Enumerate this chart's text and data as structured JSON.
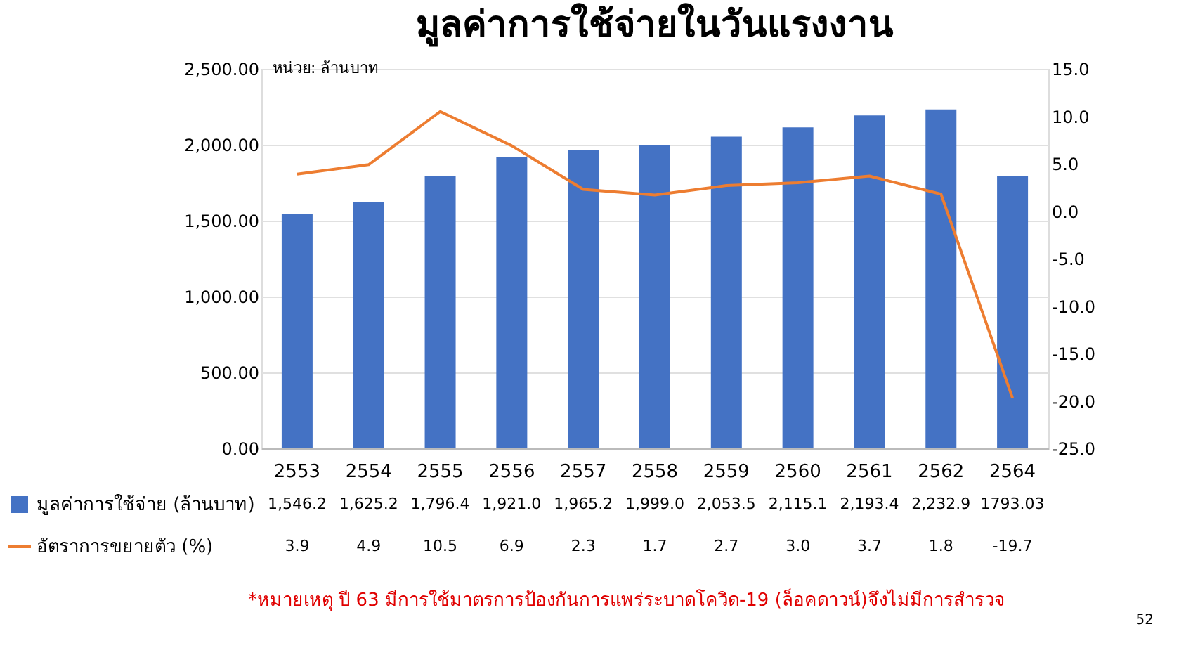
{
  "chart_data": {
    "type": "bar",
    "title": "มูลค่าการใช้จ่ายในวันแรงงาน",
    "categories": [
      "2553",
      "2554",
      "2555",
      "2556",
      "2557",
      "2558",
      "2559",
      "2560",
      "2561",
      "2562",
      "2564"
    ],
    "series": [
      {
        "name": "มูลค่าการใช้จ่าย (ล้านบาท)",
        "color": "#4472c4",
        "values": [
          1546.2,
          1625.2,
          1796.4,
          1921.0,
          1965.2,
          1999.0,
          2053.5,
          2115.1,
          2193.4,
          2232.9,
          1793.03
        ],
        "value_labels": [
          "1,546.2",
          "1,625.2",
          "1,796.4",
          "1,921.0",
          "1,965.2",
          "1,999.0",
          "2,053.5",
          "2,115.1",
          "2,193.4",
          "2,232.9",
          "1793.03"
        ]
      },
      {
        "name": "อัตราการขยายตัว (%)",
        "type": "line",
        "axis": "y2",
        "color": "#ed7d31",
        "values": [
          3.9,
          4.9,
          10.5,
          6.9,
          2.3,
          1.7,
          2.7,
          3.0,
          3.7,
          1.8,
          -19.7
        ],
        "value_labels": [
          "3.9",
          "4.9",
          "10.5",
          "6.9",
          "2.3",
          "1.7",
          "2.7",
          "3.0",
          "3.7",
          "1.8",
          "-19.7"
        ]
      }
    ],
    "ylim": [
      0,
      2500
    ],
    "yticks": [
      {
        "value": 0,
        "label": "0.00"
      },
      {
        "value": 500,
        "label": "500.00"
      },
      {
        "value": 1000,
        "label": "1,000.00"
      },
      {
        "value": 1500,
        "label": "1,500.00"
      },
      {
        "value": 2000,
        "label": "2,000.00"
      },
      {
        "value": 2500,
        "label": "2,500.00"
      }
    ],
    "y2lim": [
      -25,
      15
    ],
    "y2ticks": [
      {
        "value": -25,
        "label": "-25.0"
      },
      {
        "value": -20,
        "label": "-20.0"
      },
      {
        "value": -15,
        "label": "-15.0"
      },
      {
        "value": -10,
        "label": "-10.0"
      },
      {
        "value": -5,
        "label": "-5.0"
      },
      {
        "value": 0,
        "label": "0.0"
      },
      {
        "value": 5,
        "label": "5.0"
      },
      {
        "value": 10,
        "label": "10.0"
      },
      {
        "value": 15,
        "label": "15.0"
      }
    ],
    "grid": "y",
    "legend": "bottom",
    "marker": "none",
    "annotations": [
      "หน่วย: ล้านบาท",
      "*หมายเหตุ ปี 63 มีการใช้มาตรการป้องกันการแพร่ระบาดโควิด-19 (ล็อคดาวน์)จึงไม่มีการสำรวจ",
      "52"
    ]
  }
}
